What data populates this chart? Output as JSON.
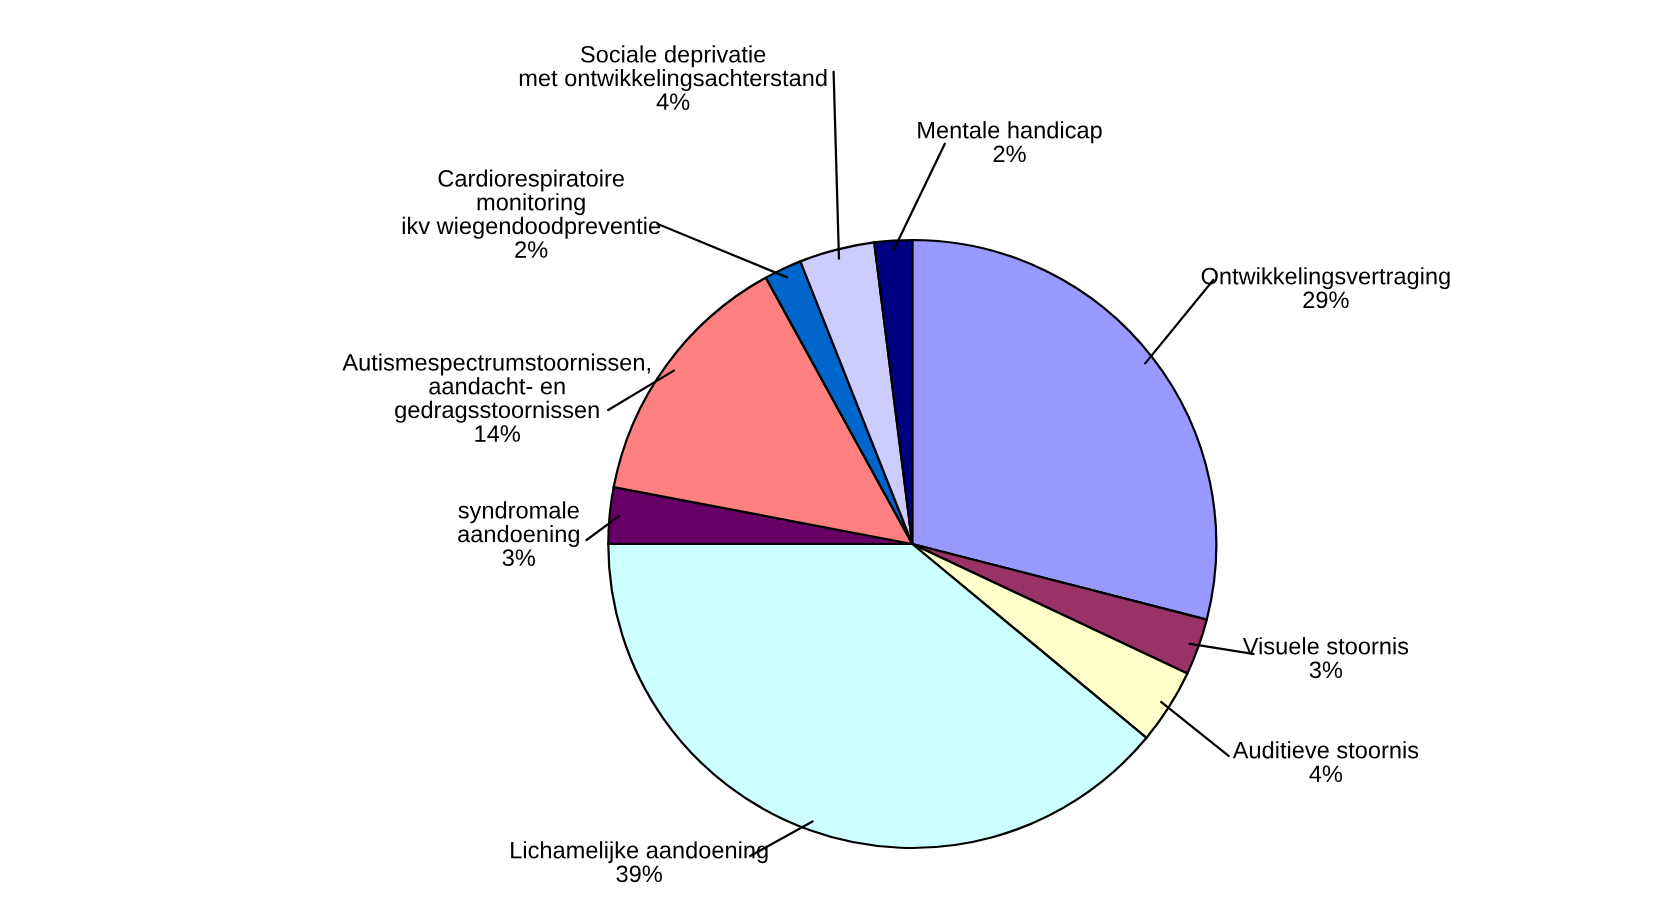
{
  "chart_data": {
    "type": "pie",
    "categories": [
      "Ontwikkelingsvertraging",
      "Visuele stoornis",
      "Auditieve stoornis",
      "Lichamelijke aandoening",
      "syndromale\naandoening",
      "Autismespectrumstoornissen,\naandacht- en\ngedragsstoornissen",
      "Cardiorespiratoire\nmonitoring\nikv wiegendoodpreventie",
      "Sociale deprivatie\nmet ontwikkelingsachterstand",
      "Mentale handicap"
    ],
    "values": [
      29,
      3,
      4,
      39,
      3,
      14,
      2,
      4,
      2
    ],
    "value_labels": [
      "29%",
      "3%",
      "4%",
      "39%",
      "3%",
      "14%",
      "2%",
      "4%",
      "2%"
    ],
    "colors": [
      "#9999ff",
      "#993366",
      "#ffffcc",
      "#ccffff",
      "#660066",
      "#ff8080",
      "#0066cc",
      "#ccccff",
      "#000080"
    ],
    "legend": false
  }
}
